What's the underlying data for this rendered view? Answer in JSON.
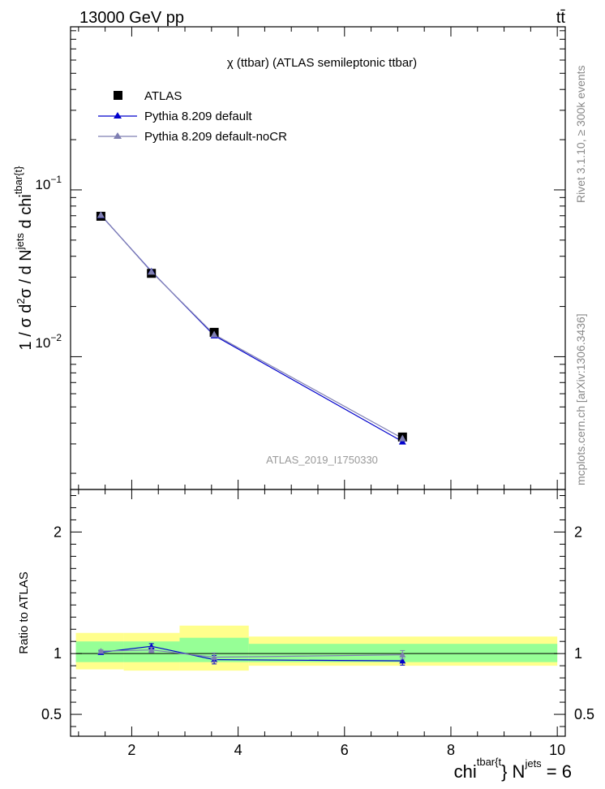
{
  "header": {
    "energy_label": "13000 GeV pp",
    "process_label": "tt̄"
  },
  "side_labels": {
    "rivet": "Rivet 3.1.10, ≥ 300k events",
    "mcplots": "mcplots.cern.ch [arXiv:1306.3436]"
  },
  "analysis_id": "ATLAS_2019_I1750330",
  "chart_data": [
    {
      "type": "line",
      "panel": "main",
      "title": "χ (ttbar) (ATLAS semileptonic ttbar)",
      "ylabel": "1 / σ d²σ / d Njets d chi^tbar{t}",
      "yscale": "log",
      "xlim": [
        0.85,
        10.15
      ],
      "ylim": [
        0.0016,
        0.95
      ],
      "y_tick_labels": [
        "10^-1",
        "10^-2"
      ],
      "legend": [
        "ATLAS",
        "Pythia 8.209 default",
        "Pythia 8.209 default-noCR"
      ],
      "x": [
        1.42,
        2.37,
        3.55,
        7.09
      ],
      "series": [
        {
          "name": "ATLAS",
          "color": "#000000",
          "marker": "square",
          "values": [
            0.0695,
            0.0316,
            0.014,
            0.0033
          ]
        },
        {
          "name": "Pythia 8.209 default",
          "color": "#0000cc",
          "marker": "triangle",
          "values": [
            0.0705,
            0.0325,
            0.0134,
            0.0031
          ]
        },
        {
          "name": "Pythia 8.209 default-noCR",
          "color": "#7f7fb2",
          "marker": "triangle",
          "values": [
            0.0708,
            0.0323,
            0.0136,
            0.00324
          ]
        }
      ]
    },
    {
      "type": "line",
      "panel": "ratio",
      "ylabel": "Ratio to ATLAS",
      "xlabel": "chi^tbar{t} Njets = 6",
      "xlim": [
        0.85,
        10.15
      ],
      "ylim": [
        0.32,
        2.35
      ],
      "x_ticks": [
        2,
        4,
        6,
        8,
        10
      ],
      "y_ticks": [
        0.5,
        1,
        2
      ],
      "bin_edges": [
        0.95,
        1.85,
        2.9,
        4.2,
        10.0
      ],
      "band_yellow": [
        [
          0.87,
          1.17
        ],
        [
          0.86,
          1.17
        ],
        [
          0.86,
          1.23
        ],
        [
          0.9,
          1.14
        ]
      ],
      "band_green": [
        [
          0.93,
          1.1
        ],
        [
          0.93,
          1.1
        ],
        [
          0.93,
          1.13
        ],
        [
          0.93,
          1.08
        ]
      ],
      "x": [
        1.42,
        2.37,
        3.55,
        7.09
      ],
      "series": [
        {
          "name": "Pythia 8.209 default",
          "color": "#0000cc",
          "values": [
            1.01,
            1.06,
            0.95,
            0.94
          ],
          "errors": [
            0.012,
            0.022,
            0.035,
            0.035
          ]
        },
        {
          "name": "Pythia 8.209 default-noCR",
          "color": "#7f7fb2",
          "values": [
            1.02,
            1.03,
            0.97,
            0.99
          ],
          "errors": [
            0.012,
            0.022,
            0.035,
            0.035
          ]
        }
      ]
    }
  ]
}
